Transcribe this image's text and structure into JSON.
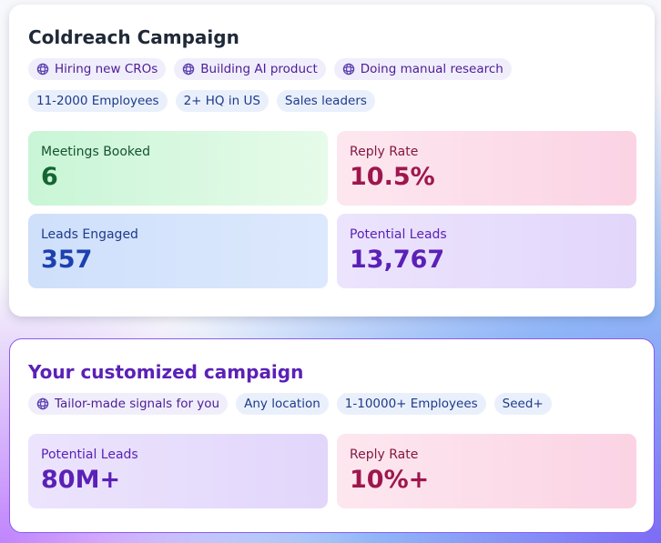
{
  "cards": [
    {
      "title": "Coldreach Campaign",
      "signal_tags": [
        "Hiring new CROs",
        "Building AI product",
        "Doing manual research"
      ],
      "filter_tags": [
        "11-2000 Employees",
        "2+ HQ in US",
        "Sales leaders"
      ],
      "stats": [
        {
          "label": "Meetings Booked",
          "value": "6"
        },
        {
          "label": "Reply Rate",
          "value": "10.5%"
        },
        {
          "label": "Leads Engaged",
          "value": "357"
        },
        {
          "label": "Potential Leads",
          "value": "13,767"
        }
      ]
    },
    {
      "title": "Your customized campaign",
      "signal_tags": [
        "Tailor-made signals for you"
      ],
      "filter_tags": [
        "Any location",
        "1-10000+ Employees",
        "Seed+"
      ],
      "stats": [
        {
          "label": "Potential Leads",
          "value": "80M+"
        },
        {
          "label": "Reply Rate",
          "value": "10%+"
        }
      ]
    }
  ]
}
